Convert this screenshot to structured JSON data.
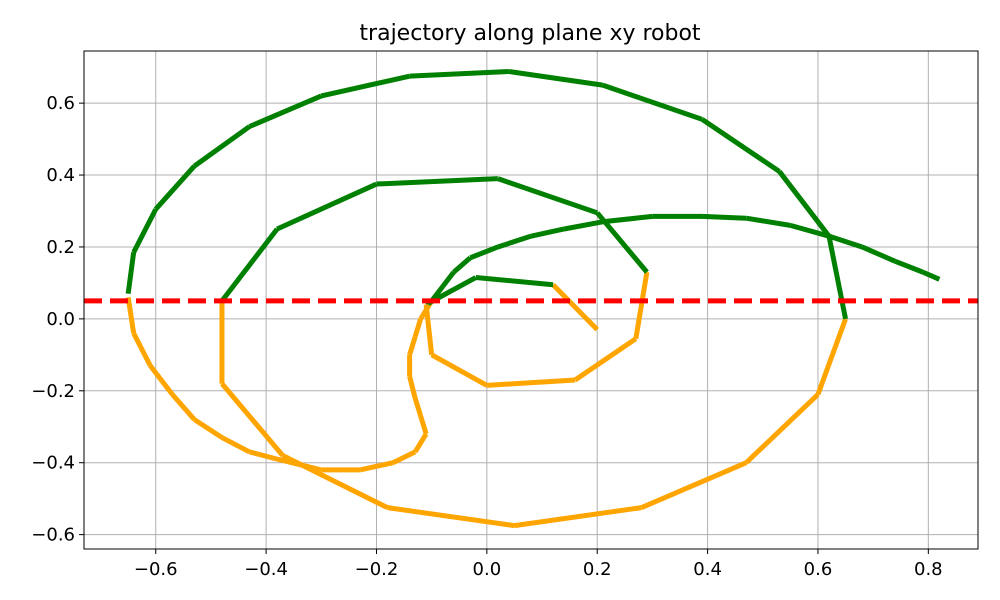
{
  "chart_data": {
    "type": "line",
    "title": "trajectory along plane xy robot",
    "xlabel": "",
    "ylabel": "",
    "xlim": [
      -0.73,
      0.89
    ],
    "ylim": [
      -0.64,
      0.745
    ],
    "grid": true,
    "x_ticks": [
      -0.6,
      -0.4,
      -0.2,
      0.0,
      0.2,
      0.4,
      0.6,
      0.8
    ],
    "x_tick_labels": [
      "−0.6",
      "−0.4",
      "−0.2",
      "0.0",
      "0.2",
      "0.4",
      "0.6",
      "0.8"
    ],
    "y_ticks": [
      -0.6,
      -0.4,
      -0.2,
      0.0,
      0.2,
      0.4,
      0.6
    ],
    "y_tick_labels": [
      "−0.6",
      "−0.4",
      "−0.2",
      "0.0",
      "0.2",
      "0.4",
      "0.6"
    ],
    "threshold": {
      "y": 0.05,
      "style": "dashed",
      "color": "#ff0000"
    },
    "segment_colors": {
      "above": "#008000",
      "below": "#ffa500"
    },
    "series": [
      {
        "points": [
          [
            0.82,
            0.11
          ],
          [
            0.79,
            0.13
          ],
          [
            0.74,
            0.16
          ],
          [
            0.68,
            0.2
          ],
          [
            0.62,
            0.23
          ],
          [
            0.55,
            0.26
          ],
          [
            0.47,
            0.28
          ],
          [
            0.39,
            0.285
          ],
          [
            0.3,
            0.285
          ],
          [
            0.21,
            0.27
          ],
          [
            0.14,
            0.25
          ],
          [
            0.08,
            0.23
          ],
          [
            0.02,
            0.2
          ],
          [
            -0.03,
            0.17
          ],
          [
            -0.06,
            0.13
          ],
          [
            -0.08,
            0.09
          ],
          [
            -0.1,
            0.05
          ],
          [
            -0.12,
            0.0
          ],
          [
            -0.13,
            -0.05
          ],
          [
            -0.14,
            -0.1
          ],
          [
            -0.14,
            -0.16
          ],
          [
            -0.13,
            -0.22
          ],
          [
            -0.12,
            -0.27
          ],
          [
            -0.11,
            -0.32
          ],
          [
            -0.13,
            -0.37
          ],
          [
            -0.17,
            -0.4
          ],
          [
            -0.23,
            -0.42
          ],
          [
            -0.3,
            -0.42
          ],
          [
            -0.38,
            -0.39
          ],
          [
            -0.43,
            -0.37
          ],
          [
            -0.48,
            -0.33
          ],
          [
            -0.53,
            -0.28
          ],
          [
            -0.57,
            -0.21
          ],
          [
            -0.61,
            -0.13
          ],
          [
            -0.64,
            -0.04
          ],
          [
            -0.65,
            0.06
          ]
        ]
      },
      {
        "points": [
          [
            0.2,
            -0.03
          ],
          [
            0.12,
            0.095
          ],
          [
            -0.02,
            0.115
          ],
          [
            -0.11,
            0.04
          ],
          [
            -0.1,
            -0.1
          ],
          [
            0.0,
            -0.185
          ],
          [
            0.16,
            -0.17
          ],
          [
            0.27,
            -0.055
          ],
          [
            0.29,
            0.13
          ],
          [
            0.2,
            0.295
          ],
          [
            0.02,
            0.39
          ],
          [
            -0.2,
            0.375
          ],
          [
            -0.38,
            0.25
          ],
          [
            -0.48,
            0.05
          ],
          [
            -0.48,
            -0.18
          ],
          [
            -0.37,
            -0.38
          ],
          [
            -0.18,
            -0.525
          ],
          [
            0.05,
            -0.575
          ],
          [
            0.28,
            -0.525
          ],
          [
            0.47,
            -0.4
          ],
          [
            0.6,
            -0.21
          ],
          [
            0.65,
            0.0
          ],
          [
            0.62,
            0.23
          ],
          [
            0.53,
            0.41
          ],
          [
            0.39,
            0.555
          ],
          [
            0.21,
            0.65
          ],
          [
            0.04,
            0.688
          ],
          [
            -0.14,
            0.675
          ],
          [
            -0.3,
            0.62
          ],
          [
            -0.43,
            0.535
          ],
          [
            -0.53,
            0.425
          ],
          [
            -0.6,
            0.305
          ],
          [
            -0.64,
            0.185
          ],
          [
            -0.65,
            0.07
          ]
        ]
      }
    ]
  }
}
